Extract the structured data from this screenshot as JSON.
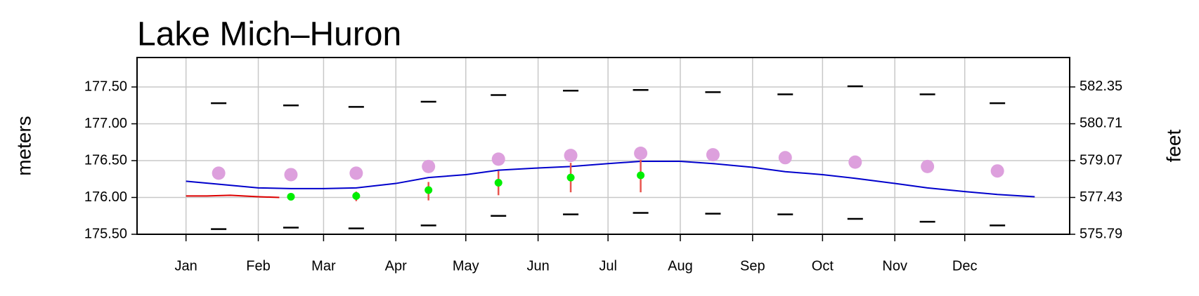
{
  "chart_data": {
    "type": "line",
    "title": "Lake Mich–Huron",
    "ylabel": "meters",
    "y2label": "feet",
    "xlim": [
      -20,
      380
    ],
    "xticks": [
      {
        "value": 1,
        "label": "Jan"
      },
      {
        "value": 32,
        "label": "Feb"
      },
      {
        "value": 60,
        "label": "Mar"
      },
      {
        "value": 91,
        "label": "Apr"
      },
      {
        "value": 121,
        "label": "May"
      },
      {
        "value": 152,
        "label": "Jun"
      },
      {
        "value": 182,
        "label": "Jul"
      },
      {
        "value": 213,
        "label": "Aug"
      },
      {
        "value": 244,
        "label": "Sep"
      },
      {
        "value": 274,
        "label": "Oct"
      },
      {
        "value": 305,
        "label": "Nov"
      },
      {
        "value": 335,
        "label": "Dec"
      }
    ],
    "ylim": [
      175.5,
      177.9
    ],
    "yticks": [
      {
        "value": 175.5,
        "label": "175.50"
      },
      {
        "value": 176,
        "label": "176.00"
      },
      {
        "value": 176.5,
        "label": "176.50"
      },
      {
        "value": 177,
        "label": "177.00"
      },
      {
        "value": 177.5,
        "label": "177.50"
      }
    ],
    "y2lim": [
      575.79,
      583.66
    ],
    "y2ticks": [
      575.79,
      577.43,
      579.07,
      580.71,
      582.35
    ],
    "grid": true,
    "series": [
      {
        "mark": "dash",
        "color": "#000000",
        "x": [
          15,
          46,
          74,
          105,
          135,
          166,
          196,
          227,
          258,
          288,
          319,
          349
        ],
        "values": [
          177.28,
          177.25,
          177.23,
          177.3,
          177.39,
          177.45,
          177.46,
          177.43,
          177.4,
          177.51,
          177.4,
          177.28
        ]
      },
      {
        "mark": "dash",
        "color": "#000000",
        "x": [
          15,
          46,
          74,
          105,
          135,
          166,
          196,
          227,
          258,
          288,
          319,
          349
        ],
        "values": [
          175.57,
          175.59,
          175.58,
          175.62,
          175.75,
          175.77,
          175.79,
          175.78,
          175.77,
          175.71,
          175.67,
          175.62
        ]
      },
      {
        "mark": "line",
        "color": "#0000cc",
        "x": [
          1,
          15,
          32,
          46,
          60,
          74,
          91,
          105,
          121,
          135,
          152,
          166,
          182,
          196,
          213,
          227,
          244,
          258,
          274,
          288,
          305,
          319,
          335,
          349,
          365
        ],
        "values": [
          176.22,
          176.18,
          176.13,
          176.12,
          176.12,
          176.13,
          176.19,
          176.27,
          176.31,
          176.37,
          176.4,
          176.42,
          176.46,
          176.49,
          176.49,
          176.46,
          176.41,
          176.35,
          176.31,
          176.26,
          176.19,
          176.13,
          176.08,
          176.04,
          176.01
        ]
      },
      {
        "mark": "line",
        "color": "#dd0000",
        "x": [
          1,
          10,
          20,
          32,
          41
        ],
        "values": [
          176.02,
          176.02,
          176.03,
          176.01,
          176.0
        ]
      },
      {
        "mark": "errorbar",
        "color": "#e8554e",
        "x": [
          74,
          105,
          135,
          166,
          196
        ],
        "low": [
          175.95,
          175.96,
          176.03,
          176.07,
          176.07
        ],
        "high": [
          176.08,
          176.21,
          176.36,
          176.47,
          176.51
        ]
      },
      {
        "mark": "dot",
        "color": "#dda0dd",
        "x": [
          15,
          46,
          74,
          105,
          135,
          166,
          196,
          227,
          258,
          288,
          319,
          349
        ],
        "values": [
          176.33,
          176.31,
          176.33,
          176.42,
          176.52,
          176.57,
          176.6,
          176.58,
          176.54,
          176.48,
          176.42,
          176.36
        ]
      },
      {
        "mark": "smalldot",
        "color": "#00ee00",
        "x": [
          46,
          74,
          105,
          135,
          166,
          196
        ],
        "values": [
          176.01,
          176.02,
          176.1,
          176.2,
          176.27,
          176.3
        ]
      }
    ]
  }
}
